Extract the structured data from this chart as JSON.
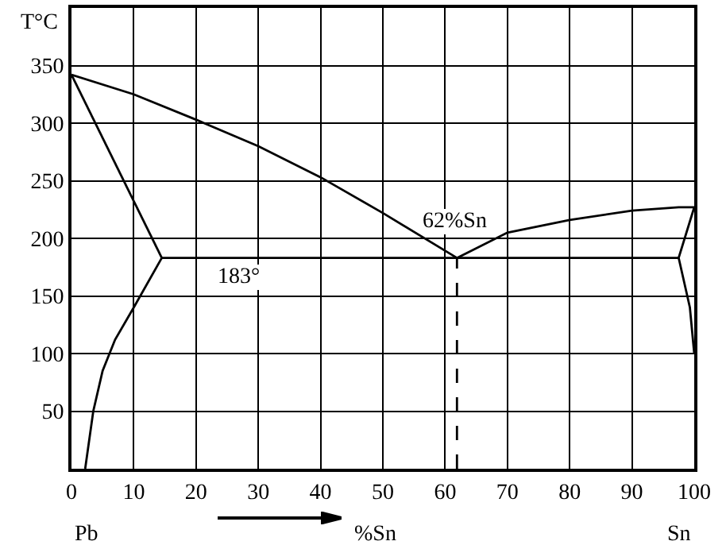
{
  "chart_data": {
    "type": "line",
    "xlabel": "%Sn",
    "ylabel": "T°C",
    "xlim": [
      0,
      100
    ],
    "ylim": [
      0,
      400
    ],
    "xticks": [
      0,
      10,
      20,
      30,
      40,
      50,
      60,
      70,
      80,
      90,
      100
    ],
    "yticks": [
      50,
      100,
      150,
      200,
      250,
      300,
      350
    ],
    "grid": true,
    "marker": "none",
    "series": [
      {
        "color": "#000000",
        "x": [
          0,
          10,
          20,
          30,
          40,
          50,
          61.9
        ],
        "values": [
          342,
          325,
          303,
          280,
          253,
          222,
          183
        ]
      },
      {
        "color": "#000000",
        "x": [
          61.9,
          70,
          80,
          90,
          97.5,
          100
        ],
        "values": [
          183,
          205,
          216,
          224,
          227,
          227
        ]
      },
      {
        "color": "#000000",
        "x": [
          0,
          14.5
        ],
        "values": [
          342,
          183
        ]
      },
      {
        "color": "#000000",
        "x": [
          14.5,
          10,
          7,
          5,
          3.5,
          2.2
        ],
        "values": [
          183,
          140,
          112,
          85,
          50,
          0
        ]
      },
      {
        "color": "#000000",
        "x": [
          14.5,
          97.5
        ],
        "values": [
          183,
          183
        ]
      },
      {
        "color": "#000000",
        "x": [
          100,
          97.5,
          99.3,
          100
        ],
        "values": [
          227,
          183,
          140,
          100
        ]
      },
      {
        "color": "#000000",
        "x": [
          61.9,
          61.9
        ],
        "values": [
          0,
          183
        ],
        "line_style": "dashed"
      }
    ],
    "annotations": [
      {
        "text": "183°",
        "x": 27,
        "y": 183
      },
      {
        "text": "62%Sn",
        "x": 61.9,
        "y": 183
      },
      "Pb",
      "Sn"
    ]
  }
}
